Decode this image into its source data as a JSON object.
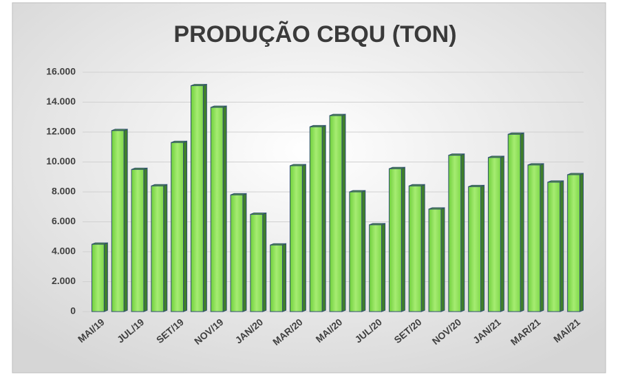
{
  "chart_data": {
    "type": "bar",
    "title": "PRODUÇÃO CBQU (TON)",
    "categories": [
      "MAI/19",
      null,
      "JUL/19",
      null,
      "SET/19",
      null,
      "NOV/19",
      null,
      "JAN/20",
      null,
      "MAR/20",
      null,
      "MAI/20",
      null,
      "JUL/20",
      null,
      "SET/20",
      null,
      "NOV/20",
      null,
      "JAN/21",
      null,
      "MAR/21",
      null,
      "MAI/21"
    ],
    "values": [
      4500,
      12100,
      9500,
      8400,
      11300,
      15100,
      13650,
      7800,
      6500,
      4450,
      9750,
      12350,
      13100,
      8000,
      5800,
      9550,
      8400,
      6850,
      10450,
      8350,
      10300,
      11850,
      9800,
      8650,
      9150
    ],
    "color": "#8fe05a",
    "ylim": [
      0,
      16000
    ],
    "yticks": [
      0,
      {
        "value": 2000,
        "label": "2.000"
      },
      {
        "value": 4000,
        "label": "4.000"
      },
      {
        "value": 6000,
        "label": "6.000"
      },
      {
        "value": 8000,
        "label": "8.000"
      },
      {
        "value": 10000,
        "label": "10.000"
      },
      {
        "value": 12000,
        "label": "12.000"
      },
      {
        "value": 14000,
        "label": "14.000"
      },
      {
        "value": 16000,
        "label": "16.000"
      }
    ],
    "grid": true
  }
}
